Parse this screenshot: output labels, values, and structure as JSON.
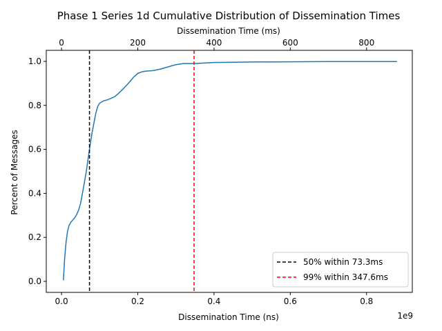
{
  "chart_data": {
    "type": "line",
    "title": "Phase 1 Series 1d Cumulative Distribution of Dissemination Times",
    "xlabel": "Dissemination Time (ns)",
    "x_offset_label": "1e9",
    "x2label": "Dissemination Time (ms)",
    "ylabel": "Percent of Messages",
    "xlim": [
      -0.04,
      0.92
    ],
    "ylim": [
      -0.05,
      1.05
    ],
    "x2lim": [
      -40,
      920
    ],
    "xticks": [
      0.0,
      0.2,
      0.4,
      0.6,
      0.8
    ],
    "xtick_labels": [
      "0.0",
      "0.2",
      "0.4",
      "0.6",
      "0.8"
    ],
    "x2ticks": [
      0,
      200,
      400,
      600,
      800
    ],
    "x2tick_labels": [
      "0",
      "200",
      "400",
      "600",
      "800"
    ],
    "yticks": [
      0.0,
      0.2,
      0.4,
      0.6,
      0.8,
      1.0
    ],
    "ytick_labels": [
      "0.0",
      "0.2",
      "0.4",
      "0.6",
      "0.8",
      "1.0"
    ],
    "grid": false,
    "legend_placement": "lower-right",
    "series": [
      {
        "color": "#1f77b4",
        "x": [
          0.005,
          0.008,
          0.012,
          0.016,
          0.02,
          0.025,
          0.03,
          0.035,
          0.04,
          0.045,
          0.05,
          0.055,
          0.06,
          0.065,
          0.07,
          0.075,
          0.08,
          0.085,
          0.09,
          0.095,
          0.1,
          0.105,
          0.11,
          0.12,
          0.13,
          0.14,
          0.15,
          0.16,
          0.17,
          0.18,
          0.19,
          0.2,
          0.21,
          0.22,
          0.24,
          0.26,
          0.28,
          0.3,
          0.32,
          0.35,
          0.4,
          0.45,
          0.5,
          0.6,
          0.7,
          0.8,
          0.88
        ],
        "y": [
          0.005,
          0.1,
          0.18,
          0.23,
          0.255,
          0.27,
          0.28,
          0.29,
          0.305,
          0.325,
          0.355,
          0.4,
          0.45,
          0.5,
          0.56,
          0.62,
          0.675,
          0.72,
          0.765,
          0.795,
          0.81,
          0.815,
          0.82,
          0.825,
          0.832,
          0.84,
          0.855,
          0.872,
          0.89,
          0.91,
          0.93,
          0.945,
          0.952,
          0.955,
          0.958,
          0.965,
          0.975,
          0.985,
          0.99,
          0.99,
          0.995,
          0.996,
          0.997,
          0.998,
          0.999,
          0.999,
          0.999
        ]
      }
    ],
    "vlines": [
      {
        "x": 0.0733,
        "color": "#000000",
        "label": "50%  within 73.3ms"
      },
      {
        "x": 0.3476,
        "color": "#ff0000",
        "label": "99%  within 347.6ms"
      }
    ]
  }
}
